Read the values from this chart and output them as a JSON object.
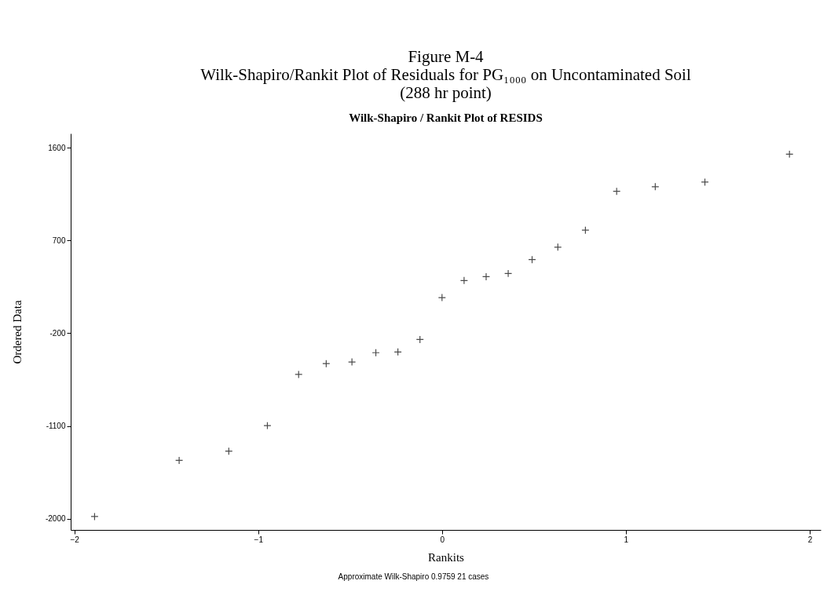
{
  "chart_data": {
    "type": "scatter",
    "title": [
      "Figure M-4",
      "Wilk-Shapiro/Rankit Plot of Residuals for PG₁₀₀₀ on Uncontaminated Soil",
      "(288 hr point)"
    ],
    "subtitle": "Wilk-Shapiro / Rankit Plot of RESIDS",
    "xlabel": "Rankits",
    "ylabel": "Ordered Data",
    "annotations": [
      "Approximate Wilk-Shapiro 0.9759   21 cases"
    ],
    "x": [
      -1.89,
      -1.43,
      -1.16,
      -0.95,
      -0.78,
      -0.63,
      -0.49,
      -0.36,
      -0.24,
      -0.12,
      0,
      0.12,
      0.24,
      0.36,
      0.49,
      0.63,
      0.78,
      0.95,
      1.16,
      1.43,
      1.89
    ],
    "series": [
      {
        "color": "#000000",
        "values": [
          -1980,
          -1435,
          -1345,
          -1097,
          -600,
          -495,
          -479,
          -389,
          -382,
          -261,
          146,
          312,
          349,
          380,
          515,
          636,
          801,
          1178,
          1223,
          1268,
          1539
        ]
      }
    ],
    "xlim": [
      -2.02,
      2.06
    ],
    "xticks": [
      -2,
      -1,
      0,
      1,
      2
    ],
    "ylim": [
      -2110,
      1740
    ],
    "yticks": [
      -2000,
      -1100,
      -200,
      700,
      1600
    ],
    "grid": false,
    "legend": false,
    "marker": "cross"
  }
}
